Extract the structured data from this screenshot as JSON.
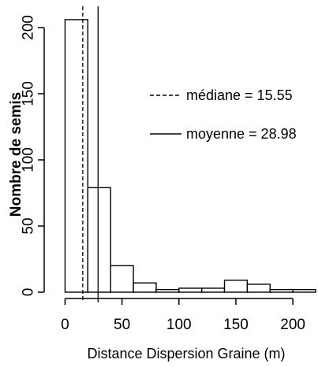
{
  "chart_data": {
    "type": "bar",
    "xlabel": "Distance Dispersion Graine (m)",
    "ylabel": "Nombre de semis",
    "xlim": [
      -10,
      220
    ],
    "ylim": [
      0,
      210
    ],
    "x_ticks": [
      0,
      50,
      100,
      150,
      200
    ],
    "y_ticks": [
      0,
      50,
      100,
      150,
      200
    ],
    "bins": [
      {
        "start": 0,
        "end": 20,
        "count": 206
      },
      {
        "start": 20,
        "end": 40,
        "count": 79
      },
      {
        "start": 40,
        "end": 60,
        "count": 20
      },
      {
        "start": 60,
        "end": 80,
        "count": 7
      },
      {
        "start": 80,
        "end": 100,
        "count": 2
      },
      {
        "start": 100,
        "end": 120,
        "count": 3
      },
      {
        "start": 120,
        "end": 140,
        "count": 3
      },
      {
        "start": 140,
        "end": 160,
        "count": 9
      },
      {
        "start": 160,
        "end": 180,
        "count": 6
      },
      {
        "start": 180,
        "end": 200,
        "count": 2
      },
      {
        "start": 200,
        "end": 220,
        "count": 2
      }
    ],
    "reference_lines": [
      {
        "label": "médiane = 15.55",
        "value": 15.55,
        "style": "dashed"
      },
      {
        "label": "moyenne = 28.98",
        "value": 28.98,
        "style": "solid"
      }
    ],
    "legend_position": "top-right"
  }
}
